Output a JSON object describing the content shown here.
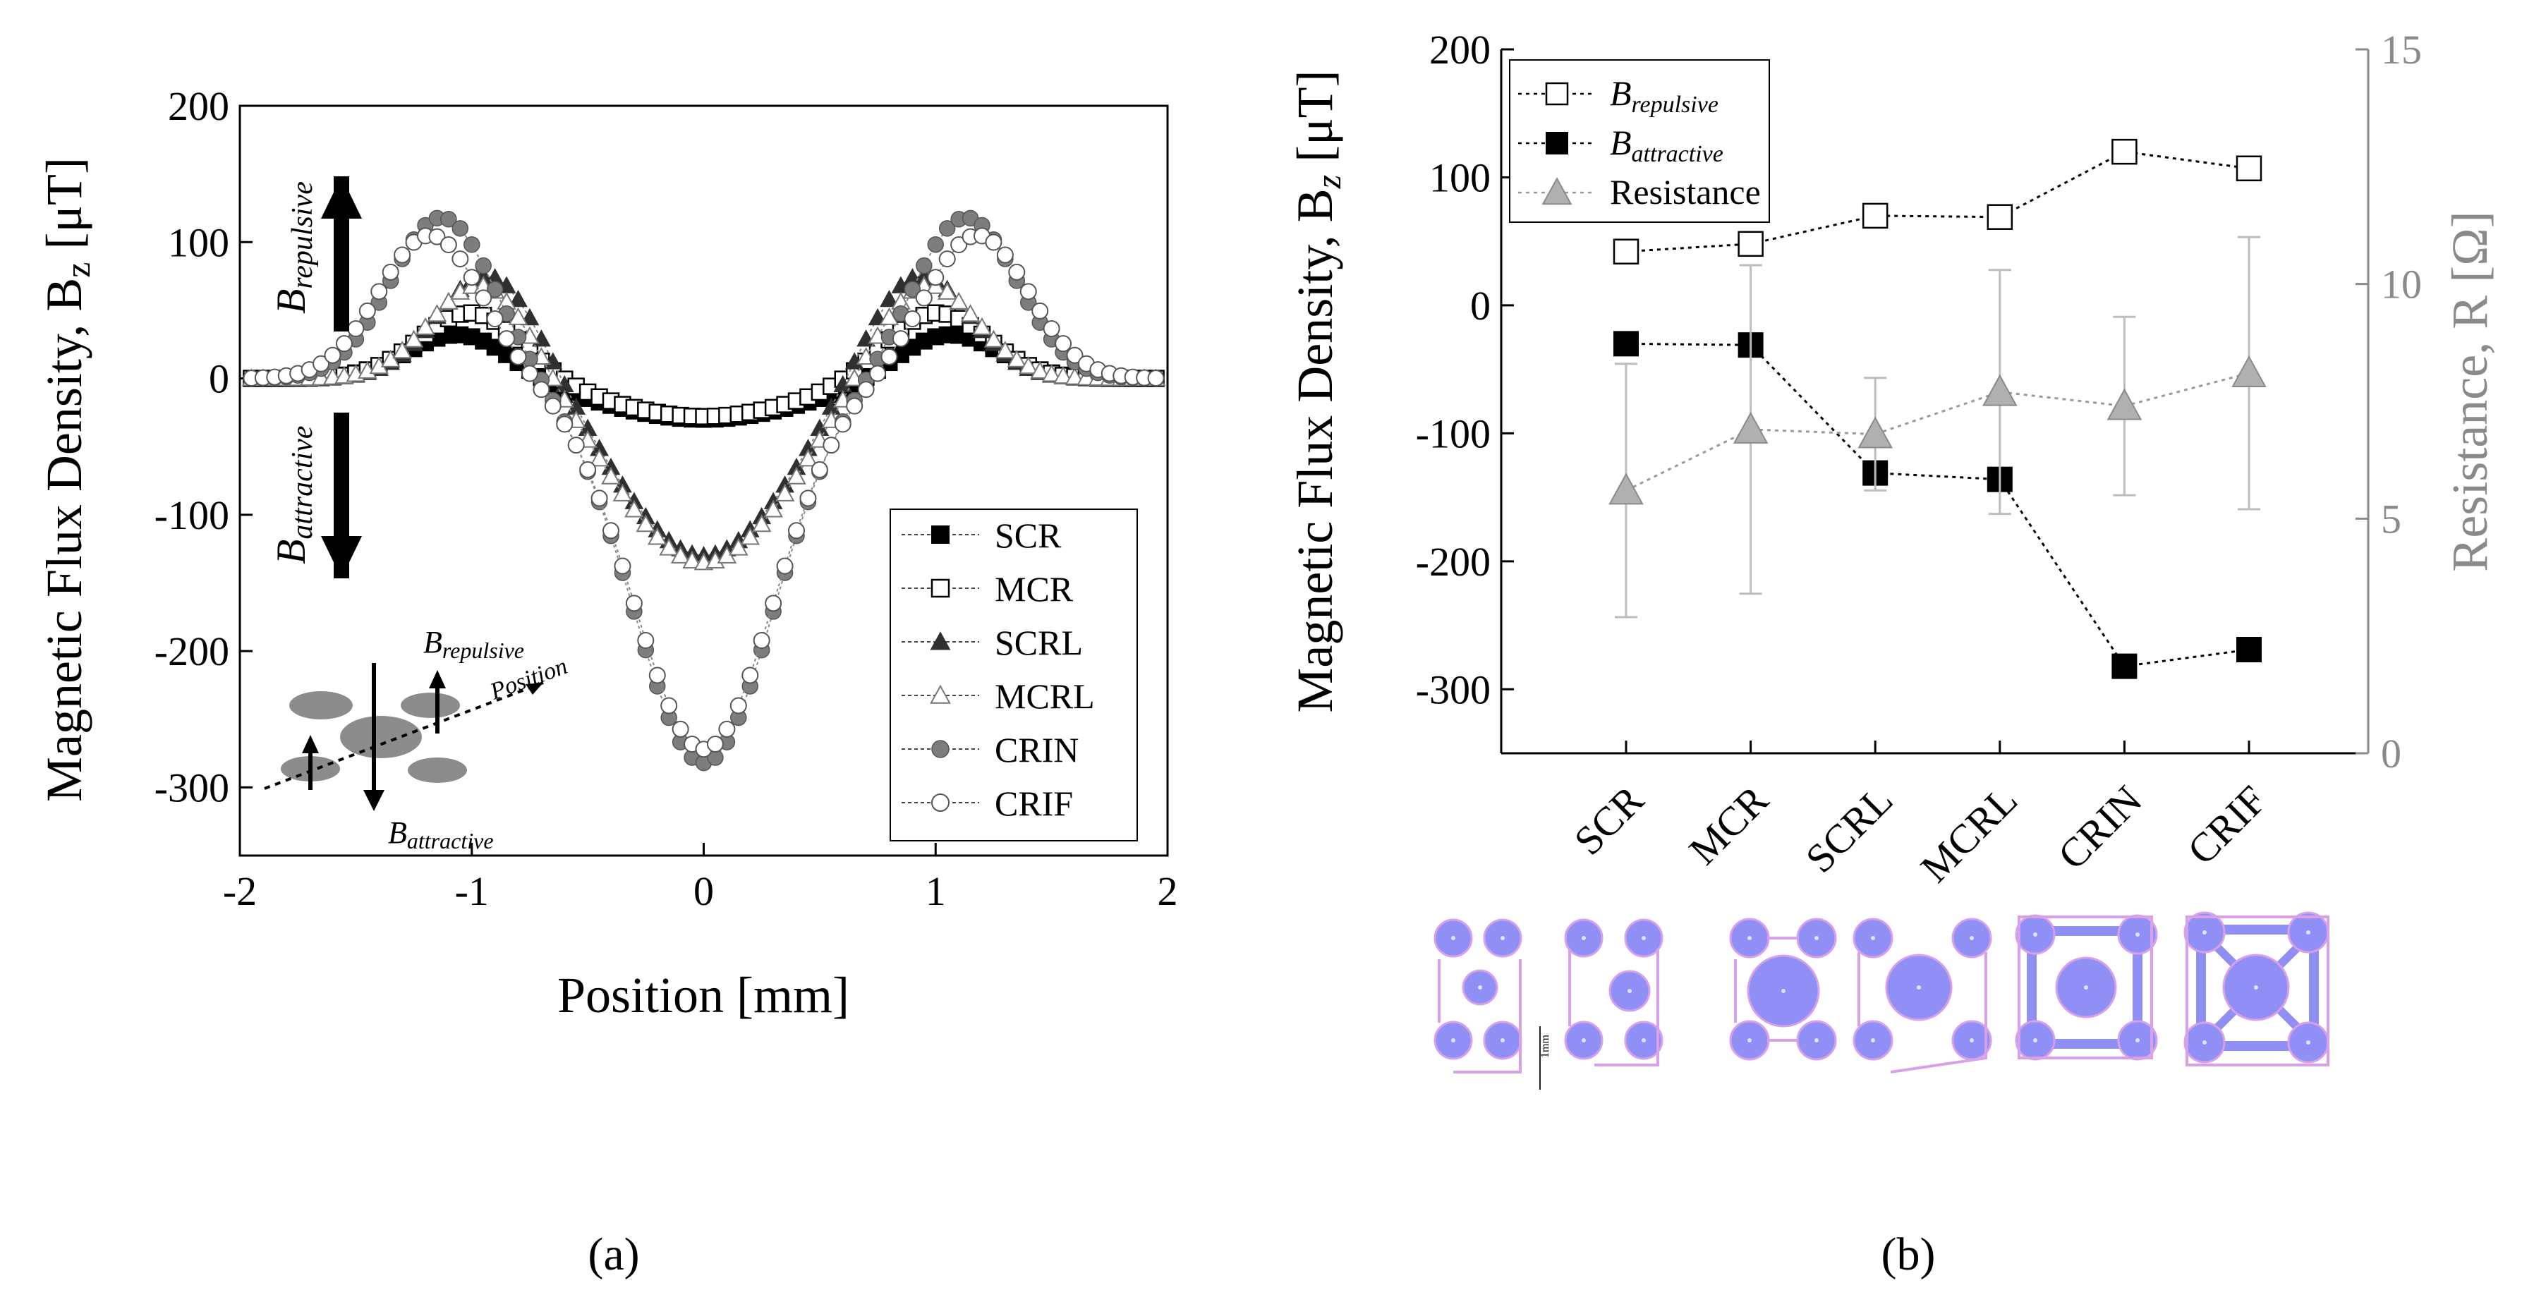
{
  "colors": {
    "axis": "#000000",
    "gray_axis": "#8a8a8a",
    "gray_marker": "#b4b4b4",
    "gray_fill": "#7f7f7f",
    "layout_fill": "#8f8ff5",
    "layout_outline": "#d8a0e8"
  },
  "panel_a": {
    "label": "(a)",
    "annotation_up": "B",
    "annotation_up_sub": "repulsive",
    "annotation_down": "B",
    "annotation_down_sub": "attractive",
    "inset_up": "B",
    "inset_up_sub": "repulsive",
    "inset_down": "B",
    "inset_down_sub": "attractive",
    "inset_position": "Position"
  },
  "panel_b": {
    "label": "(b)",
    "scale_bar_label": "1mm"
  },
  "chart_data": [
    {
      "type": "scatter",
      "title": "",
      "xlabel": "Position [mm]",
      "ylabel": "Magnetic Flux Density, B",
      "ylabel_sub": "z",
      "ylabel_unit": " [μT]",
      "xlim": [
        -2,
        2
      ],
      "ylim": [
        -350,
        200
      ],
      "xticks": [
        "-2",
        "-1",
        "0",
        "1",
        "2"
      ],
      "yticks": [
        "200",
        "100",
        "0",
        "-100",
        "-200",
        "-300"
      ],
      "legend_position": "bottom-right",
      "series": [
        {
          "name": "SCR",
          "marker": "square-filled",
          "center": -30,
          "peak": 32,
          "peak_at": 1.05,
          "width": 0.45
        },
        {
          "name": "MCR",
          "marker": "square-open",
          "center": -28,
          "peak": 48,
          "peak_at": 1.0,
          "width": 0.42
        },
        {
          "name": "SCRL",
          "marker": "triangle-filled",
          "center": -130,
          "peak": 75,
          "peak_at": 0.92,
          "width": 0.36
        },
        {
          "name": "MCRL",
          "marker": "triangle-open",
          "center": -135,
          "peak": 68,
          "peak_at": 0.95,
          "width": 0.37
        },
        {
          "name": "CRIN",
          "marker": "circle-filled",
          "center": -282,
          "peak": 118,
          "peak_at": 1.13,
          "width": 0.3
        },
        {
          "name": "CRIF",
          "marker": "circle-open",
          "center": -272,
          "peak": 105,
          "peak_at": 1.18,
          "width": 0.3
        }
      ]
    },
    {
      "type": "line",
      "title": "",
      "categories": [
        "SCR",
        "MCR",
        "SCRL",
        "MCRL",
        "CRIN",
        "CRIF"
      ],
      "ylabel": "Magnetic Flux Density, B",
      "ylabel_sub": "z",
      "ylabel_unit": " [μT]",
      "y2label": "Resistance, R [Ω]",
      "ylim": [
        -350,
        200
      ],
      "y2lim": [
        0,
        15
      ],
      "yticks": [
        "200",
        "100",
        "0",
        "-100",
        "-200",
        "-300"
      ],
      "y2ticks": [
        "15",
        "10",
        "5",
        "0"
      ],
      "legend_position": "top-left",
      "series": [
        {
          "name": "B",
          "name_sub": "repulsive",
          "axis": "left",
          "marker": "square-open",
          "values": [
            42,
            48,
            70,
            69,
            120,
            107
          ]
        },
        {
          "name": "B",
          "name_sub": "attractive",
          "axis": "left",
          "marker": "square-filled",
          "values": [
            -30,
            -31,
            -131,
            -136,
            -282,
            -269
          ]
        },
        {
          "name": "Resistance",
          "axis": "right",
          "marker": "triangle-gray",
          "values": [
            5.6,
            6.9,
            6.8,
            7.7,
            7.4,
            8.1
          ],
          "err_low": [
            2.7,
            3.5,
            1.2,
            2.6,
            1.9,
            2.9
          ],
          "err_high": [
            2.7,
            3.5,
            1.2,
            2.6,
            1.9,
            2.9
          ]
        }
      ]
    }
  ]
}
